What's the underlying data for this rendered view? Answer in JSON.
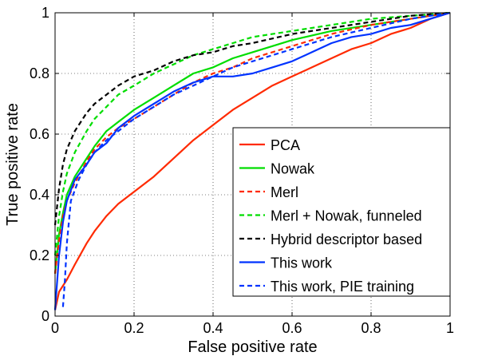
{
  "chart_data": {
    "type": "line",
    "title": "",
    "xlabel": "False positive rate",
    "ylabel": "True positive rate",
    "xlim": [
      0,
      1
    ],
    "ylim": [
      0,
      1
    ],
    "xticks": [
      0,
      0.2,
      0.4,
      0.6,
      0.8,
      1
    ],
    "yticks": [
      0,
      0.2,
      0.4,
      0.6,
      0.8,
      1
    ],
    "xtick_labels": [
      "0",
      "0.2",
      "0.4",
      "0.6",
      "0.8",
      "1"
    ],
    "ytick_labels": [
      "0",
      "0.2",
      "0.4",
      "0.6",
      "0.8",
      "1"
    ],
    "grid": true,
    "legend_position": "bottom-right",
    "series": [
      {
        "name": "PCA",
        "color": "#ff2a00",
        "style": "solid",
        "points": [
          [
            0,
            0.02
          ],
          [
            0.01,
            0.08
          ],
          [
            0.03,
            0.12
          ],
          [
            0.05,
            0.17
          ],
          [
            0.08,
            0.24
          ],
          [
            0.1,
            0.28
          ],
          [
            0.13,
            0.33
          ],
          [
            0.16,
            0.37
          ],
          [
            0.2,
            0.41
          ],
          [
            0.25,
            0.46
          ],
          [
            0.3,
            0.52
          ],
          [
            0.35,
            0.58
          ],
          [
            0.4,
            0.63
          ],
          [
            0.45,
            0.68
          ],
          [
            0.5,
            0.72
          ],
          [
            0.55,
            0.76
          ],
          [
            0.6,
            0.79
          ],
          [
            0.65,
            0.82
          ],
          [
            0.7,
            0.85
          ],
          [
            0.75,
            0.88
          ],
          [
            0.8,
            0.9
          ],
          [
            0.85,
            0.93
          ],
          [
            0.9,
            0.95
          ],
          [
            0.95,
            0.98
          ],
          [
            1,
            1
          ]
        ]
      },
      {
        "name": "Nowak",
        "color": "#00dd00",
        "style": "solid",
        "points": [
          [
            0,
            0.14
          ],
          [
            0.01,
            0.27
          ],
          [
            0.02,
            0.34
          ],
          [
            0.03,
            0.4
          ],
          [
            0.05,
            0.46
          ],
          [
            0.08,
            0.52
          ],
          [
            0.1,
            0.56
          ],
          [
            0.13,
            0.61
          ],
          [
            0.16,
            0.64
          ],
          [
            0.2,
            0.68
          ],
          [
            0.25,
            0.72
          ],
          [
            0.3,
            0.76
          ],
          [
            0.35,
            0.8
          ],
          [
            0.4,
            0.82
          ],
          [
            0.45,
            0.85
          ],
          [
            0.5,
            0.87
          ],
          [
            0.55,
            0.89
          ],
          [
            0.6,
            0.91
          ],
          [
            0.7,
            0.94
          ],
          [
            0.8,
            0.96
          ],
          [
            0.9,
            0.98
          ],
          [
            1,
            1
          ]
        ]
      },
      {
        "name": "Merl",
        "color": "#ff2a00",
        "style": "dashed",
        "points": [
          [
            0,
            0.14
          ],
          [
            0.01,
            0.25
          ],
          [
            0.02,
            0.33
          ],
          [
            0.03,
            0.38
          ],
          [
            0.05,
            0.44
          ],
          [
            0.08,
            0.51
          ],
          [
            0.1,
            0.55
          ],
          [
            0.13,
            0.59
          ],
          [
            0.16,
            0.62
          ],
          [
            0.2,
            0.65
          ],
          [
            0.25,
            0.69
          ],
          [
            0.3,
            0.73
          ],
          [
            0.35,
            0.77
          ],
          [
            0.4,
            0.8
          ],
          [
            0.45,
            0.82
          ],
          [
            0.5,
            0.85
          ],
          [
            0.55,
            0.87
          ],
          [
            0.6,
            0.89
          ],
          [
            0.7,
            0.93
          ],
          [
            0.8,
            0.96
          ],
          [
            0.9,
            0.98
          ],
          [
            1,
            1
          ]
        ]
      },
      {
        "name": "Merl + Nowak, funneled",
        "color": "#00dd00",
        "style": "dashed",
        "points": [
          [
            0,
            0.2
          ],
          [
            0.01,
            0.33
          ],
          [
            0.02,
            0.41
          ],
          [
            0.03,
            0.47
          ],
          [
            0.05,
            0.54
          ],
          [
            0.08,
            0.61
          ],
          [
            0.1,
            0.65
          ],
          [
            0.13,
            0.69
          ],
          [
            0.16,
            0.73
          ],
          [
            0.2,
            0.76
          ],
          [
            0.25,
            0.8
          ],
          [
            0.3,
            0.83
          ],
          [
            0.35,
            0.86
          ],
          [
            0.4,
            0.88
          ],
          [
            0.45,
            0.9
          ],
          [
            0.5,
            0.92
          ],
          [
            0.6,
            0.94
          ],
          [
            0.7,
            0.96
          ],
          [
            0.8,
            0.98
          ],
          [
            0.9,
            0.99
          ],
          [
            1,
            1
          ]
        ]
      },
      {
        "name": "Hybrid descriptor based",
        "color": "#000000",
        "style": "dashed",
        "points": [
          [
            0,
            0.3
          ],
          [
            0.01,
            0.42
          ],
          [
            0.02,
            0.5
          ],
          [
            0.03,
            0.55
          ],
          [
            0.05,
            0.61
          ],
          [
            0.08,
            0.67
          ],
          [
            0.1,
            0.7
          ],
          [
            0.13,
            0.73
          ],
          [
            0.16,
            0.76
          ],
          [
            0.2,
            0.79
          ],
          [
            0.25,
            0.81
          ],
          [
            0.3,
            0.84
          ],
          [
            0.35,
            0.86
          ],
          [
            0.4,
            0.87
          ],
          [
            0.45,
            0.89
          ],
          [
            0.5,
            0.9
          ],
          [
            0.6,
            0.93
          ],
          [
            0.7,
            0.95
          ],
          [
            0.8,
            0.97
          ],
          [
            0.9,
            0.99
          ],
          [
            1,
            1
          ]
        ]
      },
      {
        "name": "This work",
        "color": "#0033ff",
        "style": "solid",
        "points": [
          [
            0,
            0.02
          ],
          [
            0.01,
            0.2
          ],
          [
            0.02,
            0.31
          ],
          [
            0.03,
            0.38
          ],
          [
            0.05,
            0.45
          ],
          [
            0.08,
            0.5
          ],
          [
            0.1,
            0.54
          ],
          [
            0.13,
            0.57
          ],
          [
            0.16,
            0.62
          ],
          [
            0.2,
            0.66
          ],
          [
            0.25,
            0.7
          ],
          [
            0.3,
            0.74
          ],
          [
            0.35,
            0.77
          ],
          [
            0.4,
            0.79
          ],
          [
            0.45,
            0.79
          ],
          [
            0.5,
            0.8
          ],
          [
            0.55,
            0.82
          ],
          [
            0.6,
            0.84
          ],
          [
            0.65,
            0.87
          ],
          [
            0.7,
            0.9
          ],
          [
            0.75,
            0.92
          ],
          [
            0.8,
            0.93
          ],
          [
            0.85,
            0.95
          ],
          [
            0.9,
            0.96
          ],
          [
            0.95,
            0.98
          ],
          [
            1,
            1
          ]
        ]
      },
      {
        "name": "This work, PIE training",
        "color": "#0033ff",
        "style": "dashed",
        "points": [
          [
            0.02,
            0.03
          ],
          [
            0.025,
            0.12
          ],
          [
            0.03,
            0.24
          ],
          [
            0.04,
            0.38
          ],
          [
            0.06,
            0.45
          ],
          [
            0.08,
            0.5
          ],
          [
            0.1,
            0.54
          ],
          [
            0.13,
            0.58
          ],
          [
            0.16,
            0.61
          ],
          [
            0.2,
            0.65
          ],
          [
            0.25,
            0.69
          ],
          [
            0.3,
            0.73
          ],
          [
            0.35,
            0.76
          ],
          [
            0.4,
            0.79
          ],
          [
            0.45,
            0.82
          ],
          [
            0.5,
            0.84
          ],
          [
            0.6,
            0.88
          ],
          [
            0.7,
            0.92
          ],
          [
            0.8,
            0.95
          ],
          [
            0.9,
            0.98
          ],
          [
            1,
            1
          ]
        ]
      }
    ]
  }
}
